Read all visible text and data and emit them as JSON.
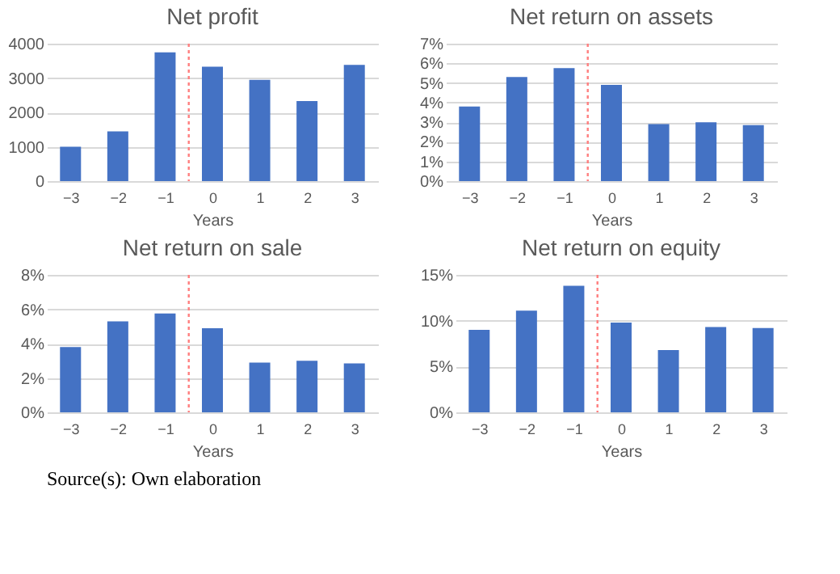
{
  "chart_data": [
    {
      "type": "bar",
      "title": "Net profit",
      "xlabel": "Years",
      "x": [
        -3,
        -2,
        -1,
        0,
        1,
        2,
        3
      ],
      "xlim": [
        -3.5,
        3.5
      ],
      "xticks": [
        {
          "value": -3,
          "label": "−3"
        },
        {
          "value": -2,
          "label": "−2"
        },
        {
          "value": -1,
          "label": "−1"
        },
        0,
        1,
        2,
        3
      ],
      "values": [
        1000,
        1450,
        3750,
        3330,
        2950,
        2330,
        3380
      ],
      "color": "#4472c4",
      "ylim": [
        0,
        4000
      ],
      "yticks": [
        0,
        1000,
        2000,
        3000,
        4000
      ],
      "grid": "y",
      "ref_lines": [
        {
          "axis": "x",
          "value": -0.5,
          "color": "#ff7f7f",
          "line_style": "dotted"
        }
      ]
    },
    {
      "type": "bar",
      "title": "Net return on assets",
      "xlabel": "Years",
      "x": [
        -3,
        -2,
        -1,
        0,
        1,
        2,
        3
      ],
      "xlim": [
        -3.5,
        3.5
      ],
      "xticks": [
        {
          "value": -3,
          "label": "−3"
        },
        {
          "value": -2,
          "label": "−2"
        },
        {
          "value": -1,
          "label": "−1"
        },
        0,
        1,
        2,
        3
      ],
      "values": [
        3.8,
        5.3,
        5.75,
        4.9,
        2.9,
        3.0,
        2.85
      ],
      "color": "#4472c4",
      "ylim": [
        0,
        7
      ],
      "yticks": [
        {
          "value": 0,
          "label": "0%"
        },
        {
          "value": 1,
          "label": "1%"
        },
        {
          "value": 2,
          "label": "2%"
        },
        {
          "value": 3,
          "label": "3%"
        },
        {
          "value": 4,
          "label": "4%"
        },
        {
          "value": 5,
          "label": "5%"
        },
        {
          "value": 6,
          "label": "6%"
        },
        {
          "value": 7,
          "label": "7%"
        }
      ],
      "grid": "y",
      "ref_lines": [
        {
          "axis": "x",
          "value": -0.5,
          "color": "#ff7f7f",
          "line_style": "dotted"
        }
      ]
    },
    {
      "type": "bar",
      "title": "Net return on sale",
      "xlabel": "Years",
      "x": [
        -3,
        -2,
        -1,
        0,
        1,
        2,
        3
      ],
      "xlim": [
        -3.5,
        3.5
      ],
      "xticks": [
        {
          "value": -3,
          "label": "−3"
        },
        {
          "value": -2,
          "label": "−2"
        },
        {
          "value": -1,
          "label": "−1"
        },
        0,
        1,
        2,
        3
      ],
      "values": [
        3.8,
        5.3,
        5.75,
        4.9,
        2.9,
        3.0,
        2.85
      ],
      "color": "#4472c4",
      "ylim": [
        0,
        8
      ],
      "yticks": [
        {
          "value": 0,
          "label": "0%"
        },
        {
          "value": 2,
          "label": "2%"
        },
        {
          "value": 4,
          "label": "4%"
        },
        {
          "value": 6,
          "label": "6%"
        },
        {
          "value": 8,
          "label": "8%"
        }
      ],
      "grid": "y",
      "ref_lines": [
        {
          "axis": "x",
          "value": -0.5,
          "color": "#ff7f7f",
          "line_style": "dotted"
        }
      ]
    },
    {
      "type": "bar",
      "title": "Net return on equity",
      "xlabel": "Years",
      "x": [
        -3,
        -2,
        -1,
        0,
        1,
        2,
        3
      ],
      "xlim": [
        -3.5,
        3.5
      ],
      "xticks": [
        {
          "value": -3,
          "label": "−3"
        },
        {
          "value": -2,
          "label": "−2"
        },
        {
          "value": -1,
          "label": "−1"
        },
        0,
        1,
        2,
        3
      ],
      "values": [
        9.0,
        11.1,
        13.8,
        9.8,
        6.8,
        9.3,
        9.2
      ],
      "color": "#4472c4",
      "ylim": [
        0,
        15
      ],
      "yticks": [
        {
          "value": 0,
          "label": "0%"
        },
        {
          "value": 5,
          "label": "5%"
        },
        {
          "value": 10,
          "label": "10%"
        },
        {
          "value": 15,
          "label": "15%"
        }
      ],
      "grid": "y",
      "ref_lines": [
        {
          "axis": "x",
          "value": -0.5,
          "color": "#ff7f7f",
          "line_style": "dotted"
        }
      ],
      "annotations": [
        "Source(s): Own elaboration"
      ]
    }
  ]
}
